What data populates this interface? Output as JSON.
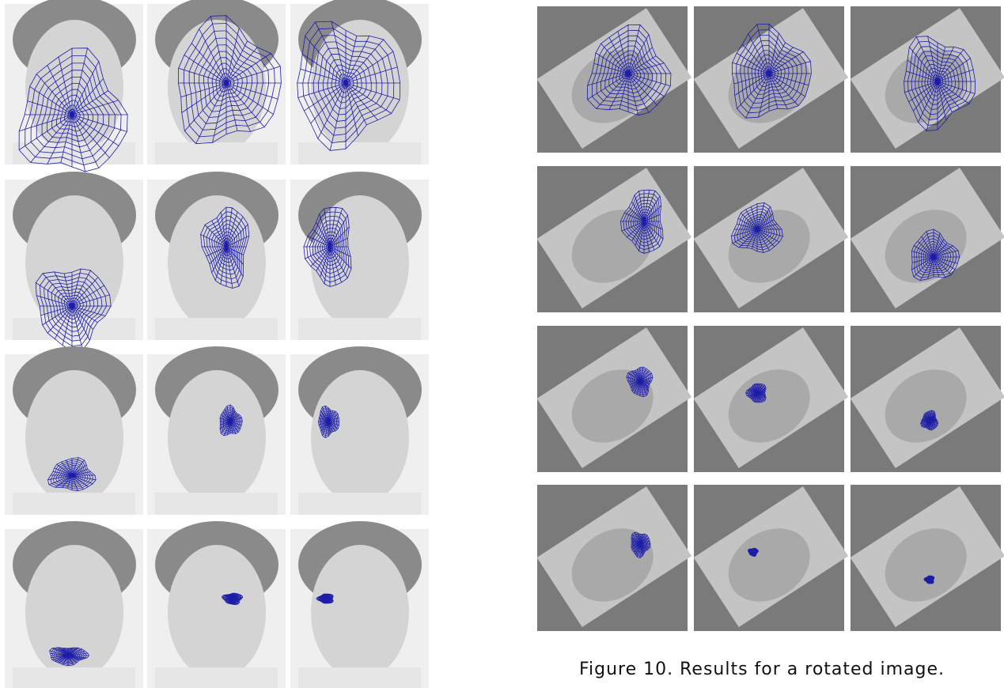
{
  "figure": {
    "caption": "Figure 10. Results for a rotated image."
  }
}
